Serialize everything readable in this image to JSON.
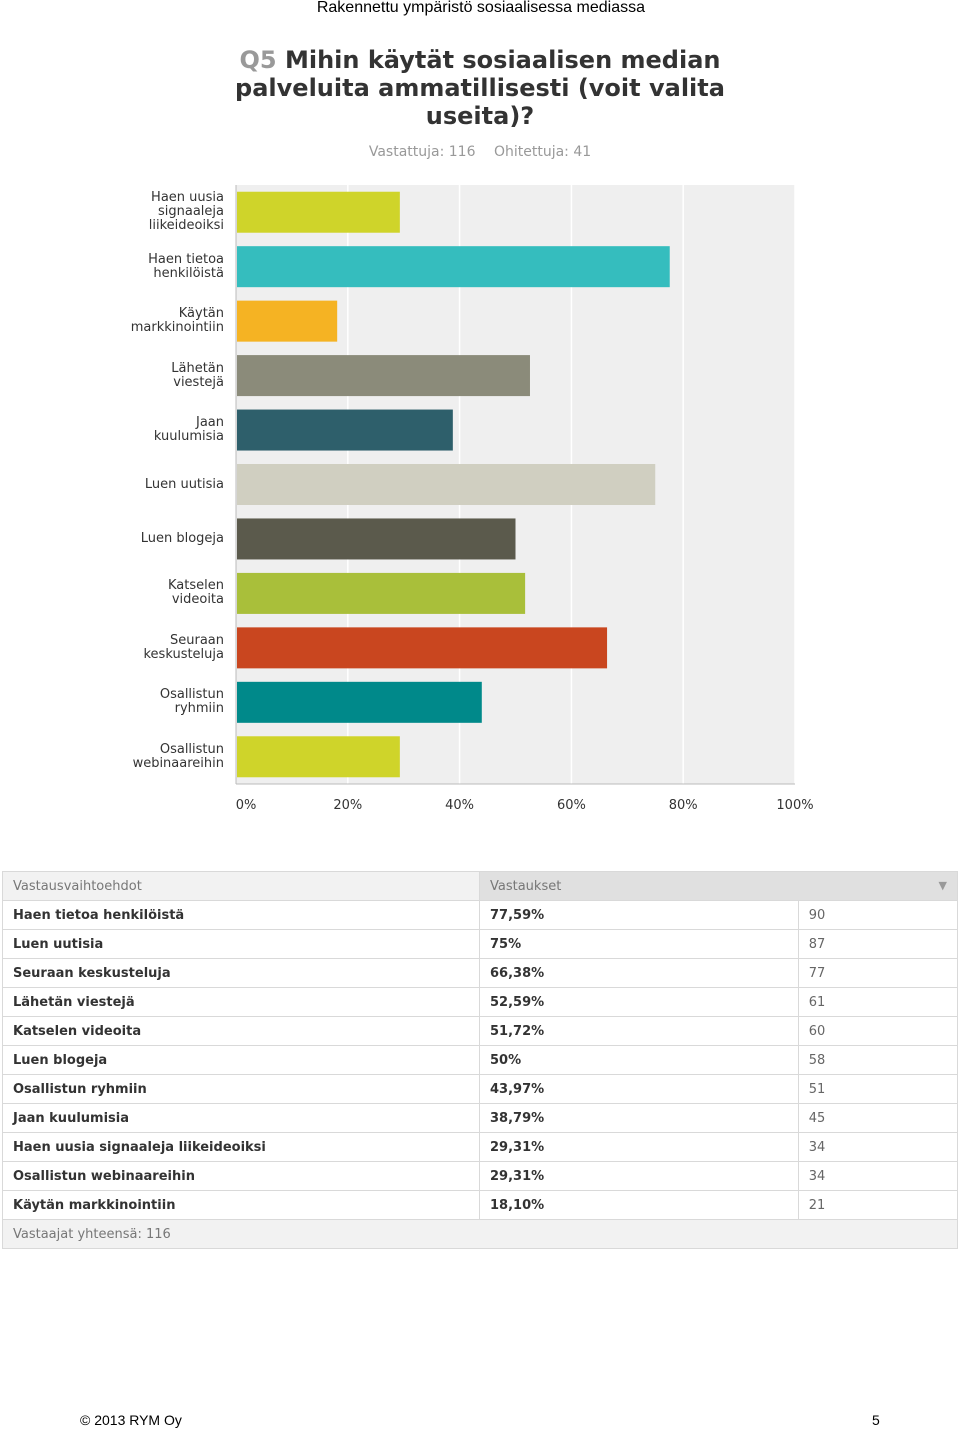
{
  "header": {
    "text": "Rakennettu ympäristö sosiaalisessa mediassa"
  },
  "question": {
    "number": "Q5",
    "text": "Mihin käytät sosiaalisen median palveluita ammatillisesti (voit valita useita)?"
  },
  "counts": {
    "answered": "Vastattuja: 116",
    "skipped": "Ohitettuja: 41"
  },
  "chart_data": {
    "type": "bar",
    "orientation": "horizontal",
    "categories": [
      [
        "Haen uusia",
        "signaaleja",
        "liikeideoiksi"
      ],
      [
        "Haen tietoa",
        "henkilöistä"
      ],
      [
        "Käytän",
        "markkinointiin"
      ],
      [
        "Lähetän",
        "viestejä"
      ],
      [
        "Jaan",
        "kuulumisia"
      ],
      [
        "Luen uutisia"
      ],
      [
        "Luen blogeja"
      ],
      [
        "Katselen",
        "videoita"
      ],
      [
        "Seuraan",
        "keskusteluja"
      ],
      [
        "Osallistun",
        "ryhmiin"
      ],
      [
        "Osallistun",
        "webinaareihin"
      ]
    ],
    "values": [
      29.31,
      77.59,
      18.1,
      52.59,
      38.79,
      75,
      50,
      51.72,
      66.38,
      43.97,
      29.31
    ],
    "colors": [
      "#cfd42a",
      "#35bdbe",
      "#f5b323",
      "#8b8b7a",
      "#2e5f6b",
      "#d0cfc1",
      "#5b5a4c",
      "#a9bf3a",
      "#c9461f",
      "#00898a",
      "#cfd42a"
    ],
    "xlim": [
      0,
      100
    ],
    "xticks": [
      "0%",
      "20%",
      "40%",
      "60%",
      "80%",
      "100%"
    ],
    "grid": true
  },
  "table": {
    "headers": {
      "option": "Vastausvaihtoehdot",
      "responses": "Vastaukset"
    },
    "rows": [
      {
        "option": "Haen tietoa henkilöistä",
        "percent": "77,59%",
        "count": "90"
      },
      {
        "option": "Luen uutisia",
        "percent": "75%",
        "count": "87"
      },
      {
        "option": "Seuraan keskusteluja",
        "percent": "66,38%",
        "count": "77"
      },
      {
        "option": "Lähetän viestejä",
        "percent": "52,59%",
        "count": "61"
      },
      {
        "option": "Katselen videoita",
        "percent": "51,72%",
        "count": "60"
      },
      {
        "option": "Luen blogeja",
        "percent": "50%",
        "count": "58"
      },
      {
        "option": "Osallistun ryhmiin",
        "percent": "43,97%",
        "count": "51"
      },
      {
        "option": "Jaan kuulumisia",
        "percent": "38,79%",
        "count": "45"
      },
      {
        "option": "Haen uusia signaaleja liikeideoiksi",
        "percent": "29,31%",
        "count": "34"
      },
      {
        "option": "Osallistun webinaareihin",
        "percent": "29,31%",
        "count": "34"
      },
      {
        "option": "Käytän markkinointiin",
        "percent": "18,10%",
        "count": "21"
      }
    ],
    "footer": "Vastaajat yhteensä: 116"
  },
  "footer": {
    "copyright": "© 2013 RYM Oy",
    "page": "5"
  }
}
